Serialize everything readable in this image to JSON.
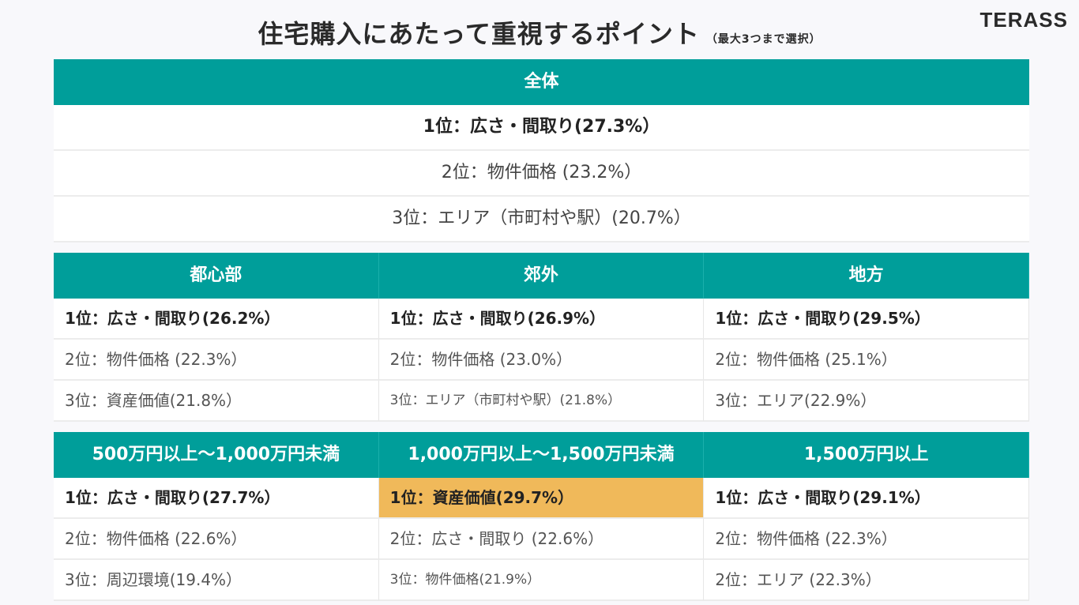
{
  "title": "住宅購入にあたって重視するポイント",
  "subtitle": "（最大3つまで選択）",
  "logo": "TERASS",
  "colors": {
    "header": "#009e9a",
    "highlight": "#f0b95a"
  },
  "overall": {
    "header": "全体",
    "rows": [
      "1位：広さ・間取り(27.3%）",
      "2位：物件価格 (23.2%）",
      "3位：エリア（市町村や駅）(20.7%）"
    ]
  },
  "area": {
    "headers": [
      "都心部",
      "郊外",
      "地方"
    ],
    "rows": [
      [
        "1位：広さ・間取り(26.2%）",
        "1位：広さ・間取り(26.9%）",
        "1位：広さ・間取り(29.5%）"
      ],
      [
        "2位：物件価格 (22.3%）",
        "2位：物件価格 (23.0%）",
        "2位：物件価格 (25.1%）"
      ],
      [
        "3位：資産価値(21.8%）",
        "3位：エリア（市町村や駅）(21.8%）",
        "3位：エリア(22.9%）"
      ]
    ]
  },
  "income": {
    "headers": [
      "500万円以上～1,000万円未満",
      "1,000万円以上～1,500万円未満",
      "1,500万円以上"
    ],
    "rows": [
      [
        "1位：広さ・間取り(27.7%）",
        "1位：資産価値(29.7%）",
        "1位：広さ・間取り(29.1%）"
      ],
      [
        "2位：物件価格 (22.6%）",
        "2位：広さ・間取り (22.6%）",
        "2位：物件価格 (22.3%）"
      ],
      [
        "3位：周辺環境(19.4%）",
        "3位：物件価格(21.9%）",
        "2位：エリア (22.3%）"
      ]
    ]
  }
}
